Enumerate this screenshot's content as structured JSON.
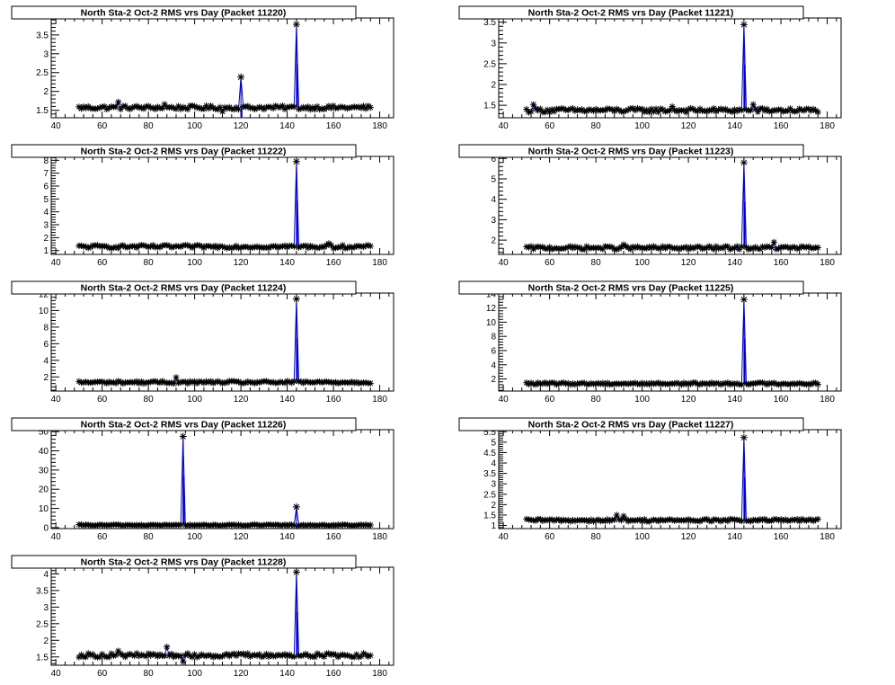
{
  "page": {},
  "colors": {
    "marker": "#000000",
    "line": "#0000cc",
    "frame": "#000000",
    "title_box": "#ffffff"
  },
  "chart_data": [
    {
      "type": "line",
      "title": "North Sta-2 Oct-2 RMS vrs Day (Packet 11220)",
      "xlim": [
        38,
        186
      ],
      "ylim": [
        1.3,
        3.95
      ],
      "xticks": [
        40,
        60,
        80,
        100,
        120,
        140,
        160,
        180
      ],
      "xtick_labels": [
        "40",
        "60",
        "80",
        "100",
        "120",
        "140",
        "160",
        "180"
      ],
      "yticks": [
        1.5,
        2,
        2.5,
        3,
        3.5
      ],
      "ytick_labels": [
        "1.5",
        "2",
        "2.5",
        "3",
        "3.5"
      ],
      "baseline": 1.57,
      "noise": 0.05,
      "x_start": 50,
      "x_end": 176,
      "spikes": [
        [
          120,
          2.38
        ],
        [
          144,
          3.78
        ]
      ],
      "outliers": [
        [
          67,
          1.72
        ],
        [
          87,
          1.66
        ],
        [
          112,
          1.46
        ]
      ],
      "x_axis": "Day",
      "y_axis": "RMS"
    },
    {
      "type": "line",
      "title": "North Sta-2 Oct-2 RMS vrs Day (Packet 11221)",
      "xlim": [
        38,
        186
      ],
      "ylim": [
        1.2,
        3.6
      ],
      "xticks": [
        40,
        60,
        80,
        100,
        120,
        140,
        160,
        180
      ],
      "xtick_labels": [
        "40",
        "60",
        "80",
        "100",
        "120",
        "140",
        "160",
        "180"
      ],
      "yticks": [
        1.5,
        2,
        2.5,
        3,
        3.5
      ],
      "ytick_labels": [
        "1.5",
        "2",
        "2.5",
        "3",
        "3.5"
      ],
      "baseline": 1.38,
      "noise": 0.05,
      "x_start": 50,
      "x_end": 176,
      "spikes": [
        [
          144,
          3.44
        ]
      ],
      "outliers": [
        [
          53,
          1.52
        ],
        [
          113,
          1.47
        ],
        [
          148,
          1.52
        ]
      ],
      "x_axis": "Day",
      "y_axis": "RMS"
    },
    {
      "type": "line",
      "title": "North Sta-2 Oct-2 RMS vrs Day (Packet 11222)",
      "xlim": [
        38,
        186
      ],
      "ylim": [
        0.7,
        8.3
      ],
      "xticks": [
        40,
        60,
        80,
        100,
        120,
        140,
        160,
        180
      ],
      "xtick_labels": [
        "40",
        "60",
        "80",
        "100",
        "120",
        "140",
        "160",
        "180"
      ],
      "yticks": [
        1,
        2,
        3,
        4,
        5,
        6,
        7,
        8
      ],
      "ytick_labels": [
        "1",
        "2",
        "3",
        "4",
        "5",
        "6",
        "7",
        "8"
      ],
      "baseline": 1.3,
      "noise": 0.12,
      "x_start": 50,
      "x_end": 176,
      "spikes": [
        [
          144,
          7.9
        ]
      ],
      "outliers": [
        [
          158,
          1.55
        ]
      ],
      "x_axis": "Day",
      "y_axis": "RMS"
    },
    {
      "type": "line",
      "title": "North Sta-2 Oct-2 RMS vrs Day (Packet 11223)",
      "xlim": [
        38,
        186
      ],
      "ylim": [
        1.3,
        6.1
      ],
      "xticks": [
        40,
        60,
        80,
        100,
        120,
        140,
        160,
        180
      ],
      "xtick_labels": [
        "40",
        "60",
        "80",
        "100",
        "120",
        "140",
        "160",
        "180"
      ],
      "yticks": [
        2,
        3,
        4,
        5,
        6
      ],
      "ytick_labels": [
        "2",
        "3",
        "4",
        "5",
        "6"
      ],
      "baseline": 1.62,
      "noise": 0.08,
      "x_start": 50,
      "x_end": 176,
      "spikes": [
        [
          144,
          5.8
        ]
      ],
      "outliers": [
        [
          157,
          1.9
        ],
        [
          92,
          1.78
        ]
      ],
      "x_axis": "Day",
      "y_axis": "RMS"
    },
    {
      "type": "line",
      "title": "North Sta-2 Oct-2 RMS vrs Day (Packet 11224)",
      "xlim": [
        38,
        186
      ],
      "ylim": [
        0.3,
        12.1
      ],
      "xticks": [
        40,
        60,
        80,
        100,
        120,
        140,
        160,
        180
      ],
      "xtick_labels": [
        "40",
        "60",
        "80",
        "100",
        "120",
        "140",
        "160",
        "180"
      ],
      "yticks": [
        2,
        4,
        6,
        8,
        10,
        12
      ],
      "ytick_labels": [
        "2",
        "4",
        "6",
        "8",
        "10",
        "12"
      ],
      "baseline": 1.35,
      "noise": 0.15,
      "x_start": 50,
      "x_end": 176,
      "spikes": [
        [
          144,
          11.4
        ]
      ],
      "outliers": [
        [
          92,
          1.95
        ]
      ],
      "x_axis": "Day",
      "y_axis": "RMS"
    },
    {
      "type": "line",
      "title": "North Sta-2 Oct-2 RMS vrs Day (Packet 11225)",
      "xlim": [
        38,
        186
      ],
      "ylim": [
        0.3,
        14.1
      ],
      "xticks": [
        40,
        60,
        80,
        100,
        120,
        140,
        160,
        180
      ],
      "xtick_labels": [
        "40",
        "60",
        "80",
        "100",
        "120",
        "140",
        "160",
        "180"
      ],
      "yticks": [
        2,
        4,
        6,
        8,
        10,
        12,
        14
      ],
      "ytick_labels": [
        "2",
        "4",
        "6",
        "8",
        "10",
        "12",
        "14"
      ],
      "baseline": 1.35,
      "noise": 0.15,
      "x_start": 50,
      "x_end": 176,
      "spikes": [
        [
          144,
          13.2
        ]
      ],
      "outliers": [],
      "x_axis": "Day",
      "y_axis": "RMS"
    },
    {
      "type": "line",
      "title": "North Sta-2 Oct-2 RMS vrs Day (Packet 11226)",
      "xlim": [
        38,
        186
      ],
      "ylim": [
        -0.5,
        51
      ],
      "xticks": [
        40,
        60,
        80,
        100,
        120,
        140,
        160,
        180
      ],
      "xtick_labels": [
        "40",
        "60",
        "80",
        "100",
        "120",
        "140",
        "160",
        "180"
      ],
      "yticks": [
        0,
        10,
        20,
        30,
        40,
        50
      ],
      "ytick_labels": [
        "0",
        "10",
        "20",
        "30",
        "40",
        "50"
      ],
      "baseline": 1.3,
      "noise": 0.3,
      "x_start": 50,
      "x_end": 176,
      "spikes": [
        [
          95,
          47.5
        ],
        [
          144,
          10.8
        ]
      ],
      "spike_width": 3,
      "outliers": [],
      "x_axis": "Day",
      "y_axis": "RMS"
    },
    {
      "type": "line",
      "title": "North Sta-2 Oct-2 RMS vrs Day (Packet 11227)",
      "xlim": [
        38,
        186
      ],
      "ylim": [
        0.85,
        5.6
      ],
      "xticks": [
        40,
        60,
        80,
        100,
        120,
        140,
        160,
        180
      ],
      "xtick_labels": [
        "40",
        "60",
        "80",
        "100",
        "120",
        "140",
        "160",
        "180"
      ],
      "yticks": [
        1,
        1.5,
        2,
        2.5,
        3,
        3.5,
        4,
        4.5,
        5,
        5.5
      ],
      "ytick_labels": [
        "1",
        "1.5",
        "2",
        "2.5",
        "3",
        "3.5",
        "4",
        "4.5",
        "5",
        "5.5"
      ],
      "baseline": 1.25,
      "noise": 0.06,
      "x_start": 50,
      "x_end": 176,
      "spikes": [
        [
          144,
          5.22
        ]
      ],
      "outliers": [
        [
          89,
          1.5
        ],
        [
          92,
          1.45
        ]
      ],
      "x_axis": "Day",
      "y_axis": "RMS"
    },
    {
      "type": "line",
      "title": "North Sta-2 Oct-2 RMS vrs Day (Packet 11228)",
      "xlim": [
        38,
        186
      ],
      "ylim": [
        1.25,
        4.2
      ],
      "xticks": [
        40,
        60,
        80,
        100,
        120,
        140,
        160,
        180
      ],
      "xtick_labels": [
        "40",
        "60",
        "80",
        "100",
        "120",
        "140",
        "160",
        "180"
      ],
      "yticks": [
        1.5,
        2,
        2.5,
        3,
        3.5,
        4
      ],
      "ytick_labels": [
        "1.5",
        "2",
        "2.5",
        "3",
        "3.5",
        "4"
      ],
      "baseline": 1.55,
      "noise": 0.06,
      "x_start": 50,
      "x_end": 176,
      "spikes": [
        [
          144,
          4.05
        ]
      ],
      "outliers": [
        [
          67,
          1.68
        ],
        [
          88,
          1.8
        ],
        [
          95,
          1.36
        ]
      ],
      "x_axis": "Day",
      "y_axis": "RMS"
    }
  ]
}
